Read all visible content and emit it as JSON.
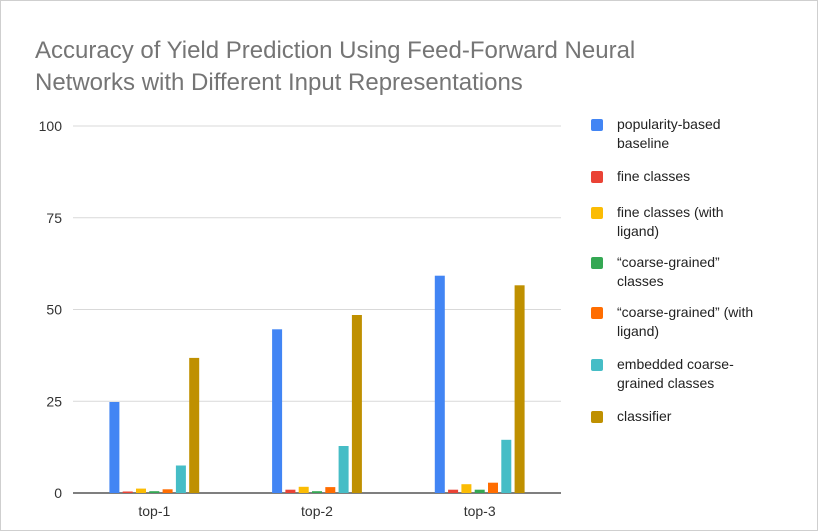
{
  "chart_data": {
    "type": "bar",
    "title_lines": [
      "Accuracy of Yield Prediction Using Feed-Forward Neural",
      "Networks with Different Input Representations"
    ],
    "categories": [
      "top-1",
      "top-2",
      "top-3"
    ],
    "ylim": [
      0,
      100
    ],
    "yticks": [
      0,
      25,
      50,
      75,
      100
    ],
    "grid": true,
    "legend_position": "right",
    "series": [
      {
        "name": "popularity-based baseline",
        "color": "#4285f4",
        "values": [
          24.8,
          44.6,
          59.2
        ]
      },
      {
        "name": "fine classes",
        "color": "#ea4335",
        "values": [
          0.4,
          0.9,
          0.9
        ]
      },
      {
        "name": "fine classes (with ligand)",
        "color": "#fbbc04",
        "values": [
          1.2,
          1.7,
          2.4
        ]
      },
      {
        "name": "“coarse-grained” classes",
        "color": "#34a853",
        "values": [
          0.5,
          0.5,
          0.9
        ]
      },
      {
        "name": "“coarse-grained” (with ligand)",
        "color": "#ff6d01",
        "values": [
          1.0,
          1.6,
          2.8
        ]
      },
      {
        "name": "embedded coarse-grained classes",
        "color": "#46bdc6",
        "values": [
          7.5,
          12.8,
          14.5
        ]
      },
      {
        "name": "classifier",
        "color": "#bf9000",
        "values": [
          36.8,
          48.5,
          56.6
        ]
      }
    ]
  },
  "legend_items": [
    {
      "lines": [
        "popularity-based",
        "baseline"
      ]
    },
    {
      "lines": [
        "fine classes"
      ]
    },
    {
      "lines": [
        "fine classes (with",
        "ligand)"
      ]
    },
    {
      "lines": [
        "“coarse-grained”",
        "classes"
      ]
    },
    {
      "lines": [
        "“coarse-grained” (with",
        "ligand)"
      ]
    },
    {
      "lines": [
        "embedded coarse-",
        "grained classes"
      ]
    },
    {
      "lines": [
        "classifier"
      ]
    }
  ]
}
